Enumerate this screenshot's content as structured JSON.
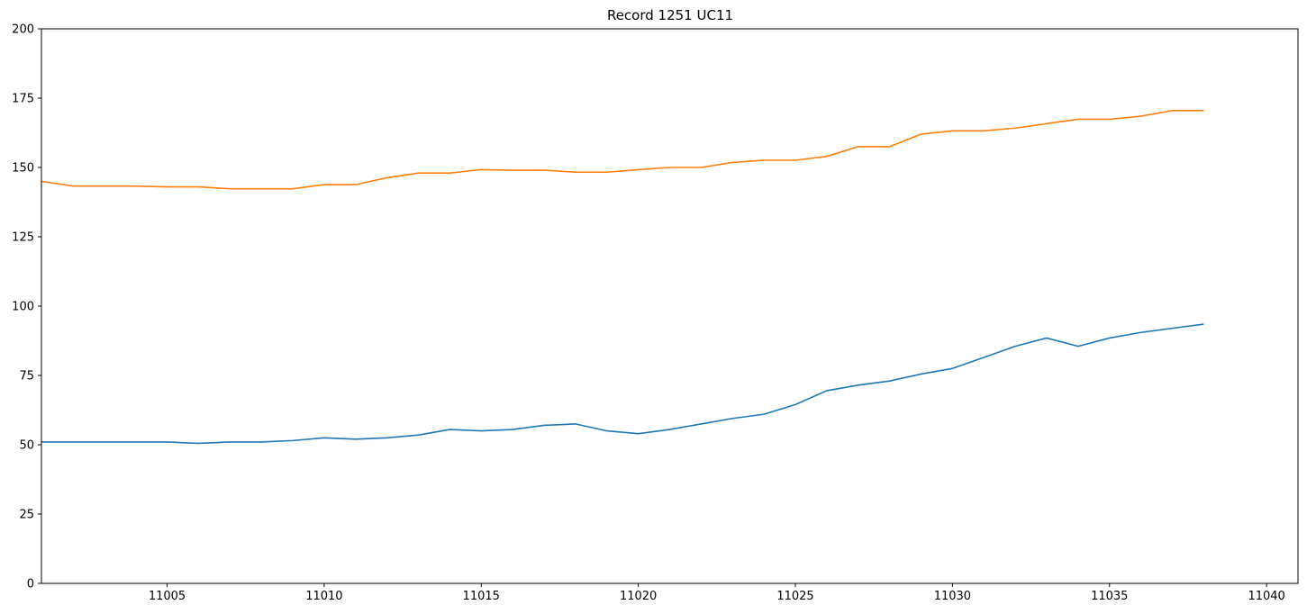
{
  "chart_data": {
    "type": "line",
    "title": "Record 1251 UC11",
    "xlabel": "",
    "ylabel": "",
    "xlim": [
      11001,
      11041
    ],
    "ylim": [
      0,
      200
    ],
    "xticks": [
      11005,
      11010,
      11015,
      11020,
      11025,
      11030,
      11035,
      11040
    ],
    "yticks": [
      0,
      25,
      50,
      75,
      100,
      125,
      150,
      175,
      200
    ],
    "grid": false,
    "legend": "none",
    "x": [
      11001,
      11002,
      11003,
      11004,
      11005,
      11006,
      11007,
      11008,
      11009,
      11010,
      11011,
      11012,
      11013,
      11014,
      11015,
      11016,
      11017,
      11018,
      11019,
      11020,
      11021,
      11022,
      11023,
      11024,
      11025,
      11026,
      11027,
      11028,
      11029,
      11030,
      11031,
      11032,
      11033,
      11034,
      11035,
      11036,
      11037,
      11038
    ],
    "series": [
      {
        "color": "#1f77b4",
        "values": [
          51,
          51,
          51,
          51,
          51,
          50.5,
          51,
          51,
          51.5,
          52.5,
          52,
          52.5,
          53.5,
          55.5,
          55,
          55.5,
          57,
          57.5,
          55,
          54,
          55.5,
          57.5,
          59.5,
          61,
          64.5,
          69.5,
          71.5,
          73,
          75.5,
          77.5,
          81.5,
          85.5,
          88.5,
          85.5,
          88.5,
          90.5,
          92,
          93.5
        ]
      },
      {
        "color": "#ff7f0e",
        "values": [
          145,
          143.3,
          143.3,
          143.3,
          143,
          143,
          142.3,
          142.3,
          142.3,
          143.8,
          143.8,
          146.3,
          148,
          148,
          149.2,
          149,
          149,
          148.3,
          148.3,
          149.2,
          150,
          150,
          151.8,
          152.6,
          152.6,
          154,
          157.5,
          157.5,
          162,
          163.2,
          163.2,
          164.2,
          165.8,
          167.4,
          167.4,
          168.5,
          170.5,
          170.5
        ]
      }
    ]
  }
}
